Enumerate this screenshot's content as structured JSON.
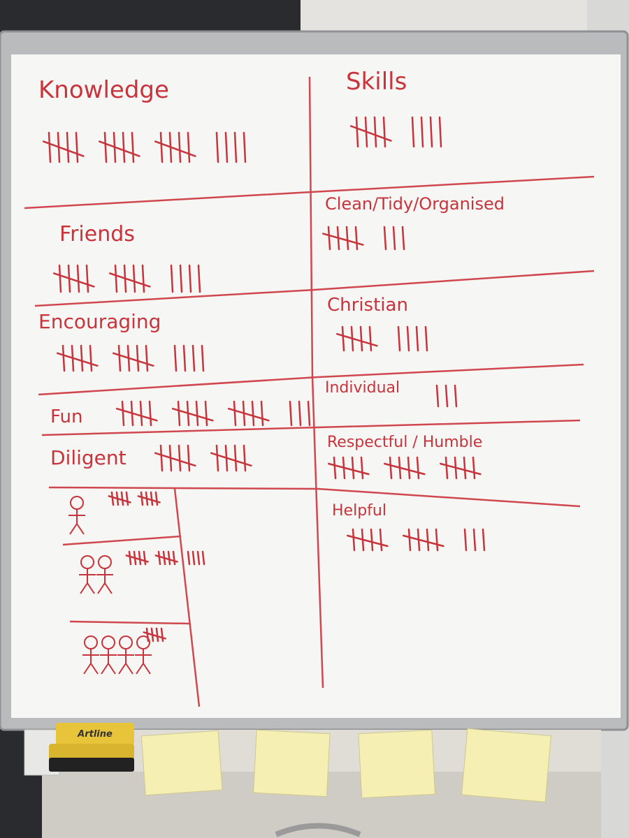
{
  "whiteboard": {
    "cells": [
      {
        "label": "Knowledge",
        "tally": 19
      },
      {
        "label": "Skills",
        "tally": 9
      },
      {
        "label": "Friends",
        "tally": 14
      },
      {
        "label": "Clean/Tidy/Organised",
        "tally": 8
      },
      {
        "label": "Encouraging",
        "tally": 14
      },
      {
        "label": "Christian",
        "tally": 9
      },
      {
        "label": "Fun",
        "tally": 18
      },
      {
        "label": "Individual",
        "tally": 3
      },
      {
        "label": "Diligent",
        "tally": 10
      },
      {
        "label": "Respectful / Humble",
        "tally": 15
      },
      {
        "label": "Helpful",
        "tally": 13
      }
    ],
    "groups": [
      {
        "people": 1,
        "tally": 10
      },
      {
        "people": 2,
        "tally": 14
      },
      {
        "people": 4,
        "tally": 5
      }
    ],
    "eraser_label": "Artline"
  }
}
